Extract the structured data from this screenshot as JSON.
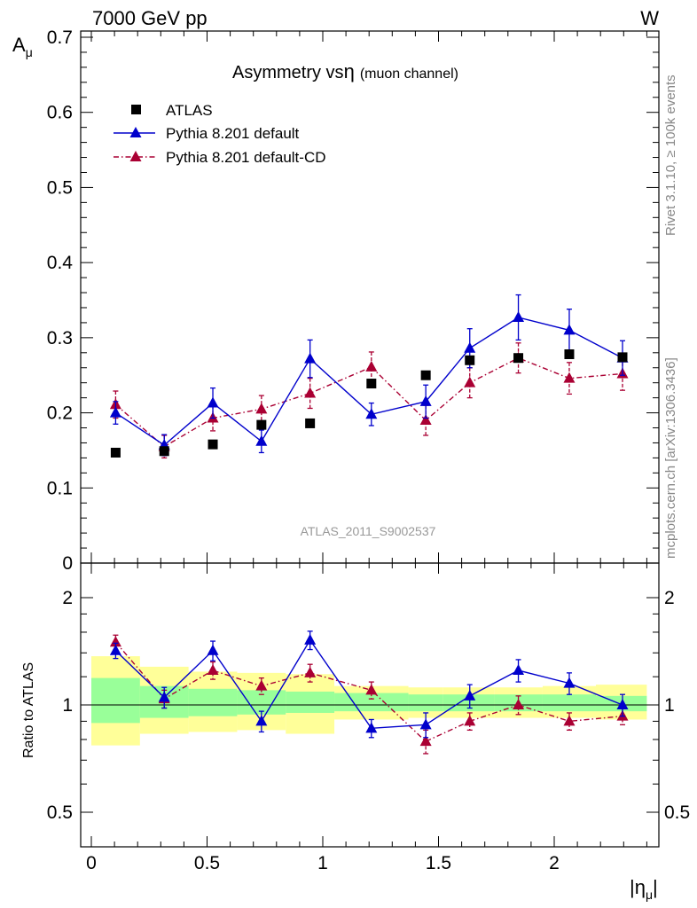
{
  "header": {
    "left": "7000 GeV pp",
    "right": "W"
  },
  "side_text": {
    "top": "Rivet 3.1.10, ≥ 100k events",
    "bottom": "mcplots.cern.ch [arXiv:1306.3436]"
  },
  "colors": {
    "atlas": "#000000",
    "default": "#0000cc",
    "cd": "#aa0033",
    "band_inner": "#99ff99",
    "band_outer": "#ffff99"
  },
  "chart_data": [
    {
      "type": "scatter",
      "title": "Asymmetry vs",
      "title_symbol": "η",
      "title_note": "(muon channel)",
      "ylabel": "A",
      "ylabel_sub": "μ",
      "xlim": [
        -0.05,
        2.47
      ],
      "ylim": [
        0,
        0.71
      ],
      "yticks": [
        0,
        0.1,
        0.2,
        0.3,
        0.4,
        0.5,
        0.6,
        0.7
      ],
      "ytick_labels": [
        "0",
        "0.1",
        "0.2",
        "0.3",
        "0.4",
        "0.5",
        "0.6",
        "0.7"
      ],
      "watermark": "ATLAS_2011_S9002537",
      "legend_position": "top-left",
      "series": [
        {
          "name": "ATLAS",
          "style": "square",
          "x": [
            0.105,
            0.315,
            0.525,
            0.735,
            0.945,
            1.21,
            1.445,
            1.635,
            1.845,
            2.065,
            2.295
          ],
          "y": [
            0.147,
            0.149,
            0.158,
            0.184,
            0.186,
            0.239,
            0.25,
            0.27,
            0.273,
            0.278,
            0.274
          ]
        },
        {
          "name": "Pythia 8.201 default",
          "style": "triangle-solid",
          "x": [
            0.105,
            0.315,
            0.525,
            0.735,
            0.945,
            1.21,
            1.445,
            1.635,
            1.845,
            2.065,
            2.295
          ],
          "y": [
            0.2,
            0.157,
            0.213,
            0.162,
            0.272,
            0.198,
            0.215,
            0.286,
            0.327,
            0.31,
            0.273
          ],
          "err": [
            0.015,
            0.014,
            0.02,
            0.015,
            0.025,
            0.015,
            0.022,
            0.026,
            0.03,
            0.028,
            0.023
          ]
        },
        {
          "name": "Pythia 8.201 default-CD",
          "style": "triangle-dashdot",
          "x": [
            0.105,
            0.315,
            0.525,
            0.735,
            0.945,
            1.21,
            1.445,
            1.635,
            1.845,
            2.065,
            2.295
          ],
          "y": [
            0.211,
            0.155,
            0.193,
            0.205,
            0.226,
            0.261,
            0.19,
            0.24,
            0.273,
            0.246,
            0.252
          ],
          "err": [
            0.018,
            0.015,
            0.017,
            0.018,
            0.02,
            0.02,
            0.02,
            0.02,
            0.02,
            0.021,
            0.022
          ]
        }
      ]
    },
    {
      "type": "scatter",
      "ylabel": "Ratio to ATLAS",
      "xlabel": "|η",
      "xlabel_sub": "μ",
      "xlabel_end": "|",
      "ylog": true,
      "ylim": [
        0.45,
        2.25
      ],
      "yticks": [
        0.5,
        1,
        2
      ],
      "ytick_labels": [
        "0.5",
        "1",
        "2"
      ],
      "xticks": [
        0,
        0.5,
        1,
        1.5,
        2
      ],
      "xtick_labels": [
        "0",
        "0.5",
        "1",
        "1.5",
        "2"
      ],
      "bands": {
        "edges": [
          0.0,
          0.21,
          0.42,
          0.63,
          0.84,
          1.05,
          1.37,
          1.52,
          1.74,
          1.95,
          2.18,
          2.4
        ],
        "inner_lo": [
          0.89,
          0.92,
          0.93,
          0.94,
          0.95,
          0.96,
          0.96,
          0.96,
          0.96,
          0.96,
          0.96
        ],
        "inner_hi": [
          1.19,
          1.13,
          1.11,
          1.1,
          1.09,
          1.08,
          1.07,
          1.07,
          1.07,
          1.07,
          1.06
        ],
        "outer_lo": [
          0.77,
          0.83,
          0.84,
          0.85,
          0.83,
          0.91,
          0.92,
          0.92,
          0.92,
          0.92,
          0.91
        ],
        "outer_hi": [
          1.37,
          1.28,
          1.24,
          1.23,
          1.22,
          1.13,
          1.12,
          1.12,
          1.12,
          1.13,
          1.14
        ]
      },
      "series": [
        {
          "name": "Pythia 8.201 default",
          "style": "triangle-solid",
          "x": [
            0.105,
            0.315,
            0.525,
            0.735,
            0.945,
            1.21,
            1.445,
            1.635,
            1.845,
            2.065,
            2.295
          ],
          "y": [
            1.42,
            1.05,
            1.42,
            0.9,
            1.52,
            0.86,
            0.88,
            1.06,
            1.25,
            1.15,
            1.0
          ],
          "err": [
            0.07,
            0.07,
            0.09,
            0.06,
            0.09,
            0.05,
            0.07,
            0.08,
            0.09,
            0.08,
            0.07
          ]
        },
        {
          "name": "Pythia 8.201 default-CD",
          "style": "triangle-dashdot",
          "x": [
            0.105,
            0.315,
            0.525,
            0.735,
            0.945,
            1.21,
            1.445,
            1.635,
            1.845,
            2.065,
            2.295
          ],
          "y": [
            1.5,
            1.04,
            1.25,
            1.13,
            1.23,
            1.1,
            0.79,
            0.9,
            1.0,
            0.9,
            0.93
          ],
          "err": [
            0.07,
            0.06,
            0.07,
            0.06,
            0.07,
            0.06,
            0.06,
            0.05,
            0.06,
            0.05,
            0.05
          ]
        }
      ]
    }
  ]
}
